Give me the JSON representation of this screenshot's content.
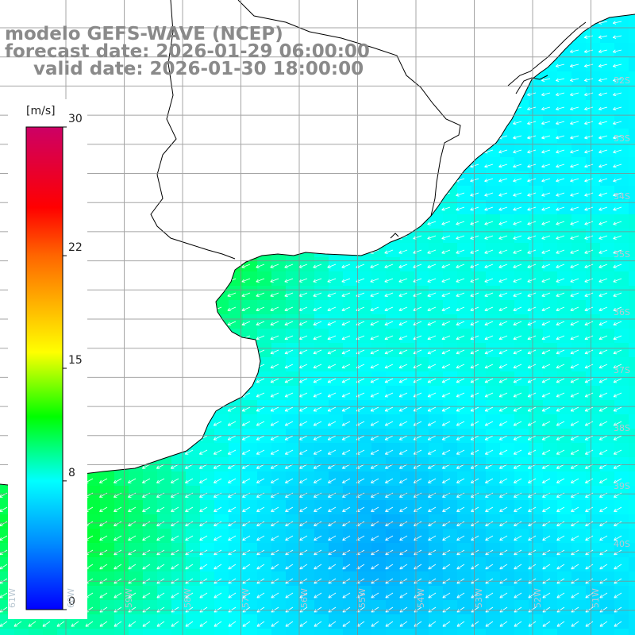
{
  "title": {
    "model": "modelo GEFS-WAVE (NCEP)",
    "forecast": "forecast date: 2026-01-29 06:00:00",
    "valid": "valid date: 2026-01-30 18:00:00"
  },
  "colorbar": {
    "units": "[m/s]",
    "min": 0,
    "max": 30,
    "ticks": [
      {
        "label": "30",
        "value": 30
      },
      {
        "label": "22",
        "value": 22
      },
      {
        "label": "15",
        "value": 15
      },
      {
        "label": "8",
        "value": 8
      },
      {
        "label": "0",
        "value": 0
      }
    ],
    "stops": [
      {
        "value": 0,
        "color": "#0000ff"
      },
      {
        "value": 4,
        "color": "#0088ff"
      },
      {
        "value": 8,
        "color": "#00ffff"
      },
      {
        "value": 12,
        "color": "#00ff00"
      },
      {
        "value": 16,
        "color": "#ffff00"
      },
      {
        "value": 22,
        "color": "#ff6600"
      },
      {
        "value": 25,
        "color": "#ff0000"
      },
      {
        "value": 30,
        "color": "#cc0066"
      }
    ]
  },
  "grid": {
    "lat_labels": [
      "32S",
      "33S",
      "34S",
      "35S",
      "36S",
      "37S",
      "38S",
      "39S",
      "40S"
    ],
    "lon_labels": [
      "61W",
      "60W",
      "59W",
      "58W",
      "57W",
      "56W",
      "55W",
      "54W",
      "53W",
      "52W",
      "51W"
    ]
  },
  "map": {
    "variable": "wind speed and direction",
    "wind_direction": "from east-northeast",
    "land_color": "#ffffff",
    "coastline_color": "#000000",
    "gridline_color": "#888888"
  }
}
